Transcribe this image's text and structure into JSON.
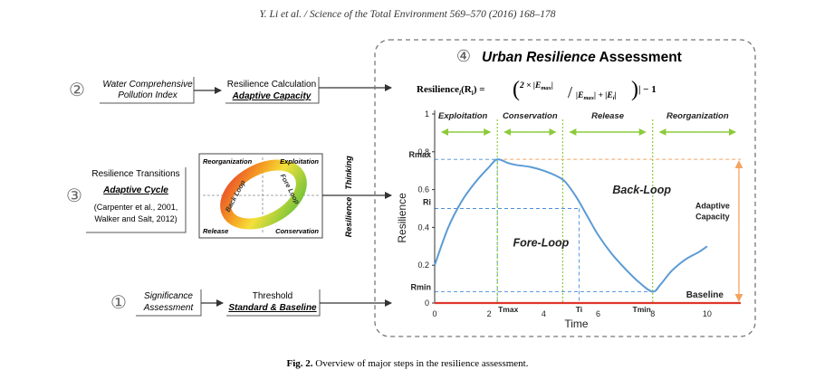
{
  "running_header": "Y. Li et al. / Science of the Total Environment 569–570 (2016) 168–178",
  "caption": {
    "label": "Fig. 2.",
    "text": " Overview of major steps in the resilience assessment."
  },
  "steps": {
    "step2": {
      "number": "②",
      "input_line1": "Water Comprehensive",
      "input_line2": "Pollution Index",
      "output_line1": "Resilience Calculation",
      "output_line2": "Adaptive Capacity"
    },
    "step3": {
      "number": "③",
      "line1": "Resilience Transitions",
      "line2": "Adaptive Cycle",
      "line3": "(Carpenter et al., 2001,",
      "line4": "Walker and Salt, 2012)"
    },
    "step1": {
      "number": "①",
      "input_line1": "Significance",
      "input_line2": "Assessment",
      "output_line1": "Threshold",
      "output_line2": "Standard & Baseline"
    }
  },
  "adaptive_cycle": {
    "top_left": "Reorganization",
    "top_right": "Exploitation",
    "bottom_left": "Release",
    "bottom_right": "Conservation",
    "arc_left": "Back Loop",
    "arc_right": "Fore Loop"
  },
  "thinking_label": {
    "word1": "Resilience",
    "word2": "Thinking"
  },
  "assessment_panel": {
    "number": "④",
    "title": "Urban Resilience",
    "title_rest": " Assessment",
    "formula_lhs": "Resilience",
    "formula_sub": "i",
    "formula_arg": "(R",
    "formula_arg_sub": "i",
    "formula_eq": ") =",
    "formula_num": "2 × |E",
    "formula_num_sub": "max",
    "formula_den": "|E",
    "formula_den_sub": "max",
    "formula_den2": "| + |E",
    "formula_den2_sub": "i",
    "formula_tail": "| − 1"
  },
  "chart_data": {
    "type": "line",
    "xlabel": "Time",
    "ylabel": "Resilience",
    "xlim": [
      0,
      11.3
    ],
    "ylim": [
      0,
      1
    ],
    "x_ticks": [
      "0",
      "2",
      "4",
      "6",
      "8",
      "10"
    ],
    "y_ticks": [
      "0",
      "0.2",
      "0.4",
      "0.6",
      "0.8",
      "1"
    ],
    "phases": [
      "Exploitation",
      "Conservation",
      "Release",
      "Reorganization"
    ],
    "annotations": {
      "fore_loop": "Fore-Loop",
      "back_loop": "Back-Loop",
      "adaptive_capacity_line1": "Adaptive",
      "adaptive_capacity_line2": "Capacity",
      "baseline": "Baseline",
      "rmax": "Rmax",
      "ri": "Ri",
      "rmin": "Rmin",
      "tmax": "Tmax",
      "ti": "Ti",
      "tmin": "Tmin"
    },
    "series": [
      {
        "name": "Resilience",
        "x": [
          0,
          0.5,
          1,
          1.5,
          2,
          2.3,
          2.7,
          3,
          3.5,
          4,
          4.5,
          4.8,
          5.2,
          5.6,
          6,
          6.5,
          7,
          7.5,
          8,
          8.3,
          8.7,
          9.2,
          9.7,
          10
        ],
        "y": [
          0.2,
          0.4,
          0.54,
          0.64,
          0.72,
          0.76,
          0.74,
          0.73,
          0.72,
          0.7,
          0.67,
          0.64,
          0.56,
          0.46,
          0.36,
          0.26,
          0.18,
          0.11,
          0.06,
          0.1,
          0.17,
          0.23,
          0.27,
          0.3
        ]
      }
    ],
    "reference_values": {
      "rmax": 0.76,
      "ri": 0.5,
      "rmin": 0.06,
      "baseline": 0,
      "tmax": 2.3,
      "ti": 5.3,
      "tmin": 8.0,
      "phase_boundaries": [
        2.3,
        4.7,
        8.0
      ]
    }
  },
  "colors": {
    "curve": "#5b9bd5",
    "baseline": "#e0352b",
    "phase_arrow": "#8ccb3a",
    "adaptive_capacity": "#f4a460",
    "guide": "#4a8fd8",
    "panel_border": "#777777"
  }
}
